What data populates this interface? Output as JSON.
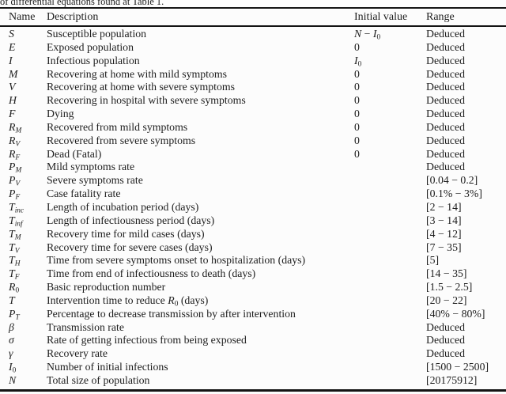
{
  "page": {
    "caption_fragment": "of differential equations found at Table 1."
  },
  "table": {
    "headers": [
      "Name",
      "Description",
      "Initial value",
      "Range"
    ],
    "rows": [
      {
        "name": [
          {
            "t": "S",
            "m": 1
          }
        ],
        "desc": "Susceptible population",
        "initial": [
          {
            "t": "N",
            "m": 1
          },
          {
            "t": " − "
          },
          {
            "t": "I",
            "m": 1
          },
          {
            "t": "0",
            "s": 1
          }
        ],
        "range": "Deduced"
      },
      {
        "name": [
          {
            "t": "E",
            "m": 1
          }
        ],
        "desc": "Exposed population",
        "initial": "0",
        "range": "Deduced"
      },
      {
        "name": [
          {
            "t": "I",
            "m": 1
          }
        ],
        "desc": "Infectious population",
        "initial": [
          {
            "t": "I",
            "m": 1
          },
          {
            "t": "0",
            "s": 1
          }
        ],
        "range": "Deduced"
      },
      {
        "name": [
          {
            "t": "M",
            "m": 1
          }
        ],
        "desc": "Recovering at home with mild symptoms",
        "initial": "0",
        "range": "Deduced"
      },
      {
        "name": [
          {
            "t": "V",
            "m": 1
          }
        ],
        "desc": "Recovering at home with severe symptoms",
        "initial": "0",
        "range": "Deduced"
      },
      {
        "name": [
          {
            "t": "H",
            "m": 1
          }
        ],
        "desc": "Recovering in hospital with severe symptoms",
        "initial": "0",
        "range": "Deduced"
      },
      {
        "name": [
          {
            "t": "F",
            "m": 1
          }
        ],
        "desc": "Dying",
        "initial": "0",
        "range": "Deduced"
      },
      {
        "name": [
          {
            "t": "R",
            "m": 1
          },
          {
            "t": "M",
            "m": 1,
            "s": 1
          }
        ],
        "desc": "Recovered from mild symptoms",
        "initial": "0",
        "range": "Deduced"
      },
      {
        "name": [
          {
            "t": "R",
            "m": 1
          },
          {
            "t": "V",
            "m": 1,
            "s": 1
          }
        ],
        "desc": "Recovered from severe symptoms",
        "initial": "0",
        "range": "Deduced"
      },
      {
        "name": [
          {
            "t": "R",
            "m": 1
          },
          {
            "t": "F",
            "m": 1,
            "s": 1
          }
        ],
        "desc": "Dead (Fatal)",
        "initial": "0",
        "range": "Deduced"
      },
      {
        "name": [
          {
            "t": "P",
            "m": 1
          },
          {
            "t": "M",
            "m": 1,
            "s": 1
          }
        ],
        "desc": "Mild symptoms rate",
        "initial": "",
        "range": "Deduced"
      },
      {
        "name": [
          {
            "t": "P",
            "m": 1
          },
          {
            "t": "V",
            "m": 1,
            "s": 1
          }
        ],
        "desc": "Severe symptoms rate",
        "initial": "",
        "range": "[0.04 − 0.2]"
      },
      {
        "name": [
          {
            "t": "P",
            "m": 1
          },
          {
            "t": "F",
            "m": 1,
            "s": 1
          }
        ],
        "desc": "Case fatality rate",
        "initial": "",
        "range": "[0.1% − 3%]"
      },
      {
        "name": [
          {
            "t": "T",
            "m": 1
          },
          {
            "t": "inc",
            "m": 1,
            "s": 1
          }
        ],
        "desc": "Length of incubation period (days)",
        "initial": "",
        "range": "[2 − 14]"
      },
      {
        "name": [
          {
            "t": "T",
            "m": 1
          },
          {
            "t": "inf",
            "m": 1,
            "s": 1
          }
        ],
        "desc": "Length of infectiousness period (days)",
        "initial": "",
        "range": "[3 − 14]"
      },
      {
        "name": [
          {
            "t": "T",
            "m": 1
          },
          {
            "t": "M",
            "m": 1,
            "s": 1
          }
        ],
        "desc": "Recovery time for mild cases (days)",
        "initial": "",
        "range": "[4 − 12]"
      },
      {
        "name": [
          {
            "t": "T",
            "m": 1
          },
          {
            "t": "V",
            "m": 1,
            "s": 1
          }
        ],
        "desc": "Recovery time for severe cases (days)",
        "initial": "",
        "range": "[7 − 35]"
      },
      {
        "name": [
          {
            "t": "T",
            "m": 1
          },
          {
            "t": "H",
            "m": 1,
            "s": 1
          }
        ],
        "desc": "Time from severe symptoms onset to hospitalization (days)",
        "initial": "",
        "range": "[5]"
      },
      {
        "name": [
          {
            "t": "T",
            "m": 1
          },
          {
            "t": "F",
            "m": 1,
            "s": 1
          }
        ],
        "desc": "Time from end of infectiousness to death (days)",
        "initial": "",
        "range": "[14 − 35]"
      },
      {
        "name": [
          {
            "t": "R",
            "m": 1
          },
          {
            "t": "0",
            "s": 1
          }
        ],
        "desc": "Basic reproduction number",
        "initial": "",
        "range": "[1.5 − 2.5]"
      },
      {
        "name": [
          {
            "t": "T",
            "m": 1
          }
        ],
        "desc": [
          {
            "t": "Intervention time to reduce "
          },
          {
            "t": "R",
            "m": 1
          },
          {
            "t": "0",
            "s": 1
          },
          {
            "t": " (days)"
          }
        ],
        "initial": "",
        "range": "[20 − 22]"
      },
      {
        "name": [
          {
            "t": "P",
            "m": 1
          },
          {
            "t": "T",
            "m": 1,
            "s": 1
          }
        ],
        "desc": "Percentage to decrease transmission by after intervention",
        "initial": "",
        "range": "[40% − 80%]"
      },
      {
        "name": [
          {
            "t": "β",
            "m": 1
          }
        ],
        "desc": "Transmission rate",
        "initial": "",
        "range": "Deduced"
      },
      {
        "name": [
          {
            "t": "σ",
            "m": 1
          }
        ],
        "desc": "Rate of getting infectious from being exposed",
        "initial": "",
        "range": "Deduced"
      },
      {
        "name": [
          {
            "t": "γ",
            "m": 1
          }
        ],
        "desc": "Recovery rate",
        "initial": "",
        "range": "Deduced"
      },
      {
        "name": [
          {
            "t": "I",
            "m": 1
          },
          {
            "t": "0",
            "s": 1
          }
        ],
        "desc": "Number of initial infections",
        "initial": "",
        "range": "[1500 − 2500]"
      },
      {
        "name": [
          {
            "t": "N",
            "m": 1
          }
        ],
        "desc": "Total size of population",
        "initial": "",
        "range": "[20175912]"
      }
    ]
  }
}
